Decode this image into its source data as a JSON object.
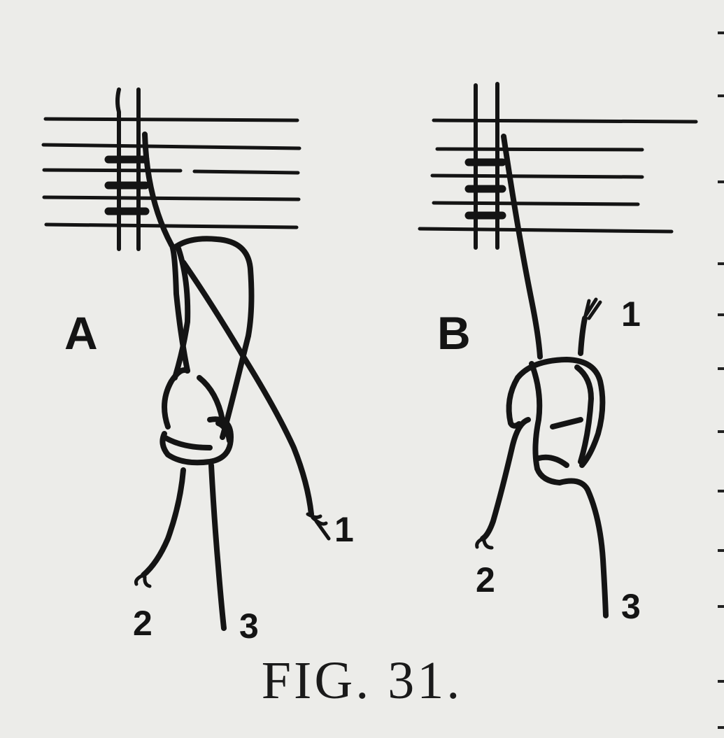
{
  "figure": {
    "caption": "FIG. 31.",
    "colors": {
      "paper": "#ecece9",
      "ink": "#141414"
    },
    "panels": [
      {
        "letter": "A",
        "description_id": "knot-diagram-a",
        "cord_labels": [
          "1",
          "2",
          "3"
        ]
      },
      {
        "letter": "B",
        "description_id": "knot-diagram-b",
        "cord_labels": [
          "1",
          "2",
          "3"
        ]
      }
    ]
  }
}
